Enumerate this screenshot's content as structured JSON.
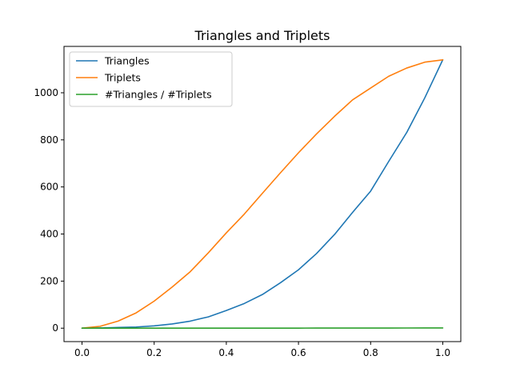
{
  "chart_data": {
    "type": "line",
    "title": "Triangles and Triplets",
    "xlabel": "",
    "ylabel": "",
    "xlim": [
      -0.05,
      1.05
    ],
    "ylim": [
      -57,
      1197
    ],
    "xticks": [
      0.0,
      0.2,
      0.4,
      0.6,
      0.8,
      1.0
    ],
    "xtick_labels": [
      "0.0",
      "0.2",
      "0.4",
      "0.6",
      "0.8",
      "1.0"
    ],
    "yticks": [
      0,
      200,
      400,
      600,
      800,
      1000
    ],
    "ytick_labels": [
      "0",
      "200",
      "400",
      "600",
      "800",
      "1000"
    ],
    "grid": false,
    "legend_position": "top-left",
    "x": [
      0.0,
      0.05,
      0.1,
      0.15,
      0.2,
      0.25,
      0.3,
      0.35,
      0.4,
      0.45,
      0.5,
      0.55,
      0.6,
      0.65,
      0.7,
      0.75,
      0.8,
      0.85,
      0.9,
      0.95,
      1.0
    ],
    "series": [
      {
        "name": "Triangles",
        "color": "#1f77b4",
        "values": [
          0,
          1,
          3,
          5,
          10,
          18,
          30,
          48,
          75,
          105,
          143,
          193,
          248,
          317,
          398,
          492,
          582,
          708,
          831,
          978,
          1140
        ]
      },
      {
        "name": "Triplets",
        "color": "#ff7f0e",
        "values": [
          0,
          8,
          30,
          65,
          115,
          175,
          240,
          320,
          405,
          485,
          573,
          660,
          745,
          825,
          900,
          970,
          1020,
          1070,
          1105,
          1130,
          1140
        ]
      },
      {
        "name": "#Triangles / #Triplets",
        "color": "#2ca02c",
        "values": [
          0,
          0.1,
          0.1,
          0.1,
          0.1,
          0.1,
          0.1,
          0.2,
          0.2,
          0.2,
          0.2,
          0.3,
          0.3,
          0.4,
          0.4,
          0.5,
          0.6,
          0.7,
          0.8,
          0.9,
          1.0
        ]
      }
    ]
  }
}
